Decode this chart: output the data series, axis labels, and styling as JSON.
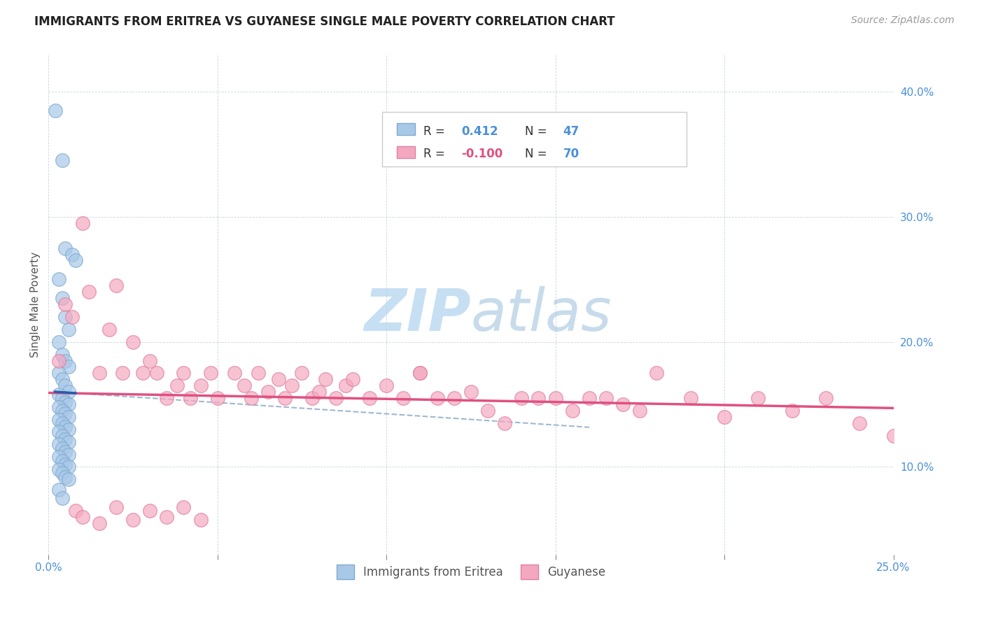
{
  "title": "IMMIGRANTS FROM ERITREA VS GUYANESE SINGLE MALE POVERTY CORRELATION CHART",
  "source": "Source: ZipAtlas.com",
  "ylabel": "Single Male Poverty",
  "xlim": [
    0.0,
    0.25
  ],
  "ylim": [
    0.03,
    0.43
  ],
  "y_ticks": [
    0.1,
    0.2,
    0.3,
    0.4
  ],
  "legend1_R": "0.412",
  "legend1_N": "47",
  "legend2_R": "-0.100",
  "legend2_N": "70",
  "blue_color": "#a8c8e8",
  "pink_color": "#f4a8c0",
  "blue_line_color": "#2060b0",
  "pink_line_color": "#e05080",
  "dashed_line_color": "#a0b8d0",
  "watermark_zip_color": "#b8d8f0",
  "watermark_atlas_color": "#90b8d8",
  "background_color": "#ffffff",
  "eritrea_x": [
    0.002,
    0.004,
    0.005,
    0.007,
    0.008,
    0.003,
    0.004,
    0.005,
    0.006,
    0.003,
    0.004,
    0.005,
    0.006,
    0.003,
    0.004,
    0.005,
    0.006,
    0.003,
    0.004,
    0.005,
    0.006,
    0.003,
    0.004,
    0.005,
    0.006,
    0.003,
    0.004,
    0.005,
    0.006,
    0.003,
    0.004,
    0.005,
    0.006,
    0.003,
    0.004,
    0.005,
    0.006,
    0.003,
    0.004,
    0.005,
    0.006,
    0.003,
    0.004,
    0.005,
    0.006,
    0.003,
    0.004
  ],
  "eritrea_y": [
    0.385,
    0.345,
    0.275,
    0.27,
    0.265,
    0.25,
    0.235,
    0.22,
    0.21,
    0.2,
    0.19,
    0.185,
    0.18,
    0.175,
    0.17,
    0.165,
    0.16,
    0.158,
    0.155,
    0.152,
    0.15,
    0.148,
    0.145,
    0.143,
    0.14,
    0.138,
    0.135,
    0.132,
    0.13,
    0.128,
    0.125,
    0.122,
    0.12,
    0.118,
    0.115,
    0.112,
    0.11,
    0.108,
    0.105,
    0.102,
    0.1,
    0.098,
    0.095,
    0.092,
    0.09,
    0.082,
    0.075
  ],
  "guyanese_x": [
    0.003,
    0.005,
    0.007,
    0.01,
    0.012,
    0.015,
    0.018,
    0.02,
    0.022,
    0.025,
    0.028,
    0.03,
    0.032,
    0.035,
    0.038,
    0.04,
    0.042,
    0.045,
    0.048,
    0.05,
    0.055,
    0.058,
    0.06,
    0.062,
    0.065,
    0.068,
    0.07,
    0.072,
    0.075,
    0.078,
    0.08,
    0.082,
    0.085,
    0.088,
    0.09,
    0.095,
    0.1,
    0.105,
    0.11,
    0.115,
    0.12,
    0.125,
    0.13,
    0.135,
    0.14,
    0.145,
    0.15,
    0.155,
    0.16,
    0.165,
    0.17,
    0.175,
    0.18,
    0.19,
    0.2,
    0.21,
    0.22,
    0.23,
    0.24,
    0.25,
    0.008,
    0.01,
    0.015,
    0.02,
    0.025,
    0.03,
    0.035,
    0.04,
    0.045,
    0.11
  ],
  "guyanese_y": [
    0.185,
    0.23,
    0.22,
    0.295,
    0.24,
    0.175,
    0.21,
    0.245,
    0.175,
    0.2,
    0.175,
    0.185,
    0.175,
    0.155,
    0.165,
    0.175,
    0.155,
    0.165,
    0.175,
    0.155,
    0.175,
    0.165,
    0.155,
    0.175,
    0.16,
    0.17,
    0.155,
    0.165,
    0.175,
    0.155,
    0.16,
    0.17,
    0.155,
    0.165,
    0.17,
    0.155,
    0.165,
    0.155,
    0.175,
    0.155,
    0.155,
    0.16,
    0.145,
    0.135,
    0.155,
    0.155,
    0.155,
    0.145,
    0.155,
    0.155,
    0.15,
    0.145,
    0.175,
    0.155,
    0.14,
    0.155,
    0.145,
    0.155,
    0.135,
    0.125,
    0.065,
    0.06,
    0.055,
    0.068,
    0.058,
    0.065,
    0.06,
    0.068,
    0.058,
    0.175
  ]
}
